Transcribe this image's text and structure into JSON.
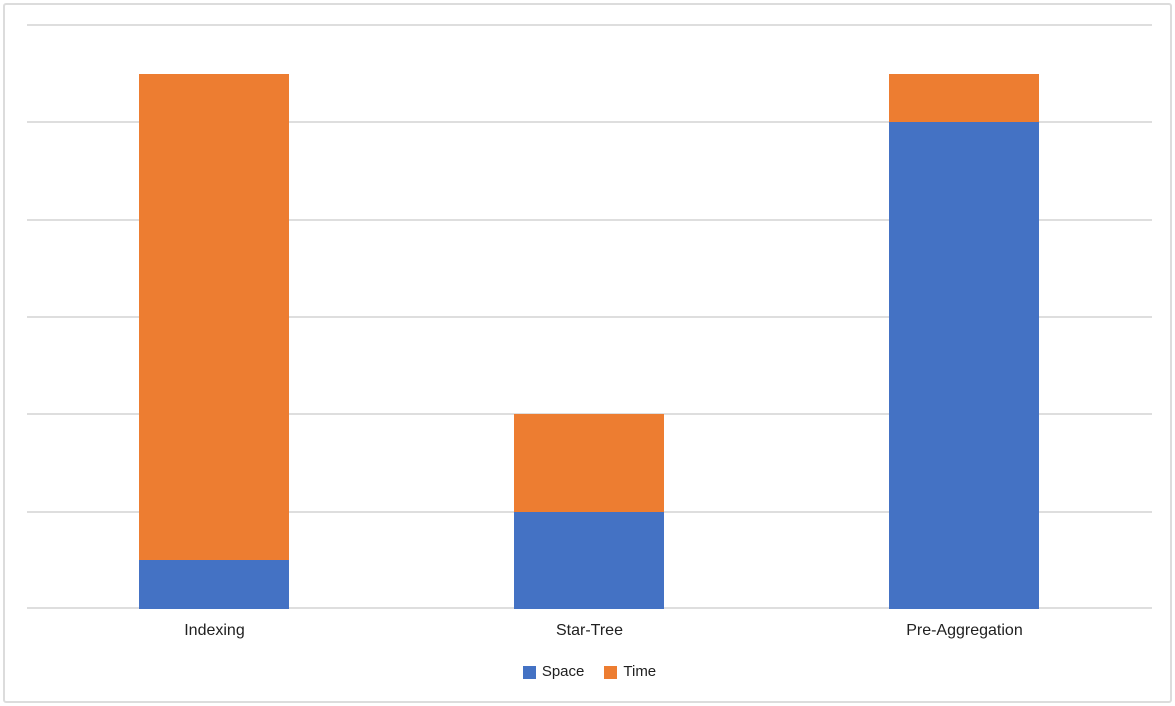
{
  "chart_data": {
    "type": "bar",
    "stacked": true,
    "title": "",
    "xlabel": "",
    "ylabel": "",
    "categories": [
      "Indexing",
      "Star-Tree",
      "Pre-Aggregation"
    ],
    "series": [
      {
        "name": "Space",
        "color": "#4472C4",
        "values": [
          0.5,
          1.0,
          5.0
        ]
      },
      {
        "name": "Time",
        "color": "#ED7D31",
        "values": [
          5.0,
          1.0,
          0.5
        ]
      }
    ],
    "ylim": [
      0,
      6
    ],
    "grid_divisions": 6,
    "grid_on": true,
    "grid_color": "#DEDEDE",
    "axis_tick_labels_visible": false,
    "legend_position": "bottom"
  },
  "frame": {
    "border_color": "#DCDCDC",
    "background_color": "#FFFFFF"
  }
}
